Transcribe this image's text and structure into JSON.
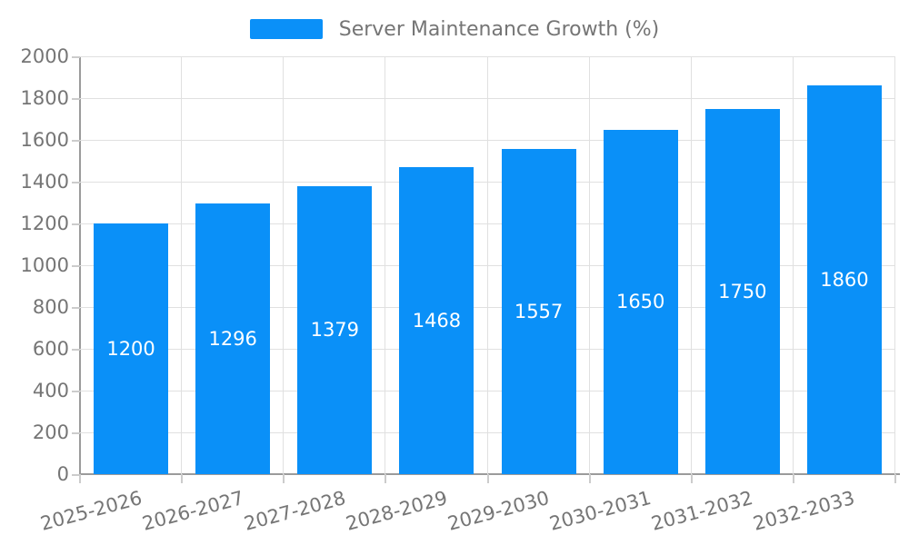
{
  "legend": {
    "label": "Server Maintenance Growth (%)"
  },
  "chart_data": {
    "type": "bar",
    "title": "Server Maintenance Growth (%)",
    "categories": [
      "2025-2026",
      "2026-2027",
      "2027-2028",
      "2028-2029",
      "2029-2030",
      "2030-2031",
      "2031-2032",
      "2032-2033"
    ],
    "values": [
      1200,
      1296,
      1379,
      1468,
      1557,
      1650,
      1750,
      1860
    ],
    "value_labels": [
      "1200",
      "1296",
      "1379",
      "1468",
      "1557",
      "1650",
      "1750",
      "1860"
    ],
    "xlabel": "",
    "ylabel": "",
    "ylim": [
      0,
      2000
    ],
    "ytick_step": 200,
    "ytick_labels": [
      "0",
      "200",
      "400",
      "600",
      "800",
      "1000",
      "1200",
      "1400",
      "1600",
      "1800",
      "2000"
    ],
    "legend_position": "top-center",
    "grid": true,
    "x_label_rotation_deg": -15,
    "colors": {
      "bar": "#0A90F8",
      "value_label": "#FFFFFF",
      "axis_text": "#757575",
      "grid_line": "#E0E0E0",
      "axis_line": "#9B9B9B",
      "tick": "#CCCCCC",
      "background": "#FFFFFF"
    }
  }
}
